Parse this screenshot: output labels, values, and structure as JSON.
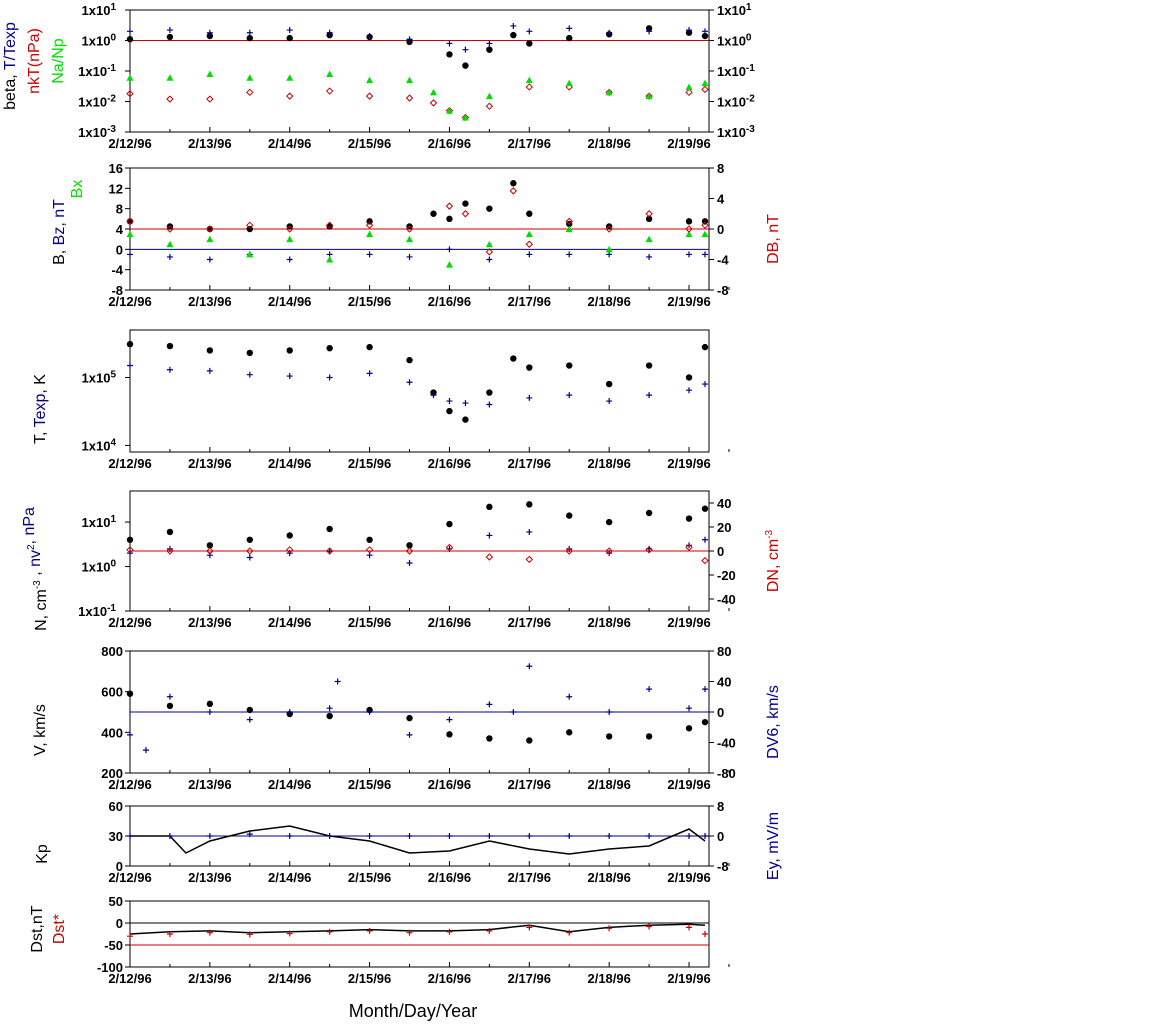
{
  "figure": {
    "xlabel": "Month/Day/Year",
    "date_ticks": [
      "2/12/96",
      "2/13/96",
      "2/14/96",
      "2/15/96",
      "2/16/96",
      "2/17/96",
      "2/18/96",
      "2/19/96"
    ]
  },
  "colors": {
    "black": "#000000",
    "blue": "#00008b",
    "red": "#cc0000",
    "green": "#00dd00"
  },
  "chart_data": [
    {
      "id": "beta",
      "type": "scatter",
      "y_scale": "log",
      "ylim": [
        0.001,
        10
      ],
      "y_ticks": [
        "1x10-3",
        "1x10-2",
        "1x10-1",
        "1x100",
        "1x101"
      ],
      "y2_ticks": [
        "1x10-3",
        "1x10-2",
        "1x10-1",
        "1x100",
        "1x101"
      ],
      "ylabels": [
        {
          "text": "beta, ",
          "color": "black"
        },
        {
          "text": "T/Texp",
          "color": "blue"
        },
        {
          "text": "nkT(nPa)",
          "color": "red"
        },
        {
          "text": "Na/Np",
          "color": "green"
        }
      ],
      "reference_lines": [
        {
          "y": 1,
          "color": "red"
        }
      ],
      "series": [
        {
          "marker": "dot",
          "color": "black",
          "x": [
            0,
            0.5,
            1,
            1.5,
            2,
            2.5,
            3,
            3.5,
            4,
            4.2,
            4.5,
            4.8,
            5,
            5.5,
            6,
            6.5,
            7,
            7.2
          ],
          "y": [
            1.1,
            1.3,
            1.4,
            1.2,
            1.2,
            1.5,
            1.3,
            0.9,
            0.35,
            0.15,
            0.5,
            1.5,
            0.8,
            1.2,
            1.6,
            2.5,
            1.8,
            1.4
          ]
        },
        {
          "marker": "plus",
          "color": "blue",
          "x": [
            0,
            0.5,
            1,
            1.5,
            2,
            2.5,
            3,
            3.5,
            4,
            4.2,
            4.5,
            4.8,
            5,
            5.5,
            6,
            6.5,
            7,
            7.2
          ],
          "y": [
            2,
            2.2,
            1.8,
            1.8,
            2.2,
            1.8,
            1.4,
            1.1,
            0.8,
            0.5,
            0.8,
            3,
            2,
            2.5,
            1.8,
            2,
            2.2,
            2
          ]
        },
        {
          "marker": "diamond",
          "color": "red",
          "x": [
            0,
            0.5,
            1,
            1.5,
            2,
            2.5,
            3,
            3.5,
            3.8,
            4,
            4.2,
            4.5,
            5,
            5.5,
            6,
            6.5,
            7,
            7.2
          ],
          "y": [
            0.018,
            0.012,
            0.012,
            0.02,
            0.015,
            0.022,
            0.015,
            0.013,
            0.009,
            0.005,
            0.003,
            0.007,
            0.03,
            0.03,
            0.02,
            0.015,
            0.02,
            0.025
          ]
        },
        {
          "marker": "triangle",
          "color": "green",
          "x": [
            0,
            0.5,
            1,
            1.5,
            2,
            2.5,
            3,
            3.5,
            3.8,
            4,
            4.2,
            4.5,
            5,
            5.5,
            6,
            6.5,
            7,
            7.2
          ],
          "y": [
            0.06,
            0.06,
            0.08,
            0.06,
            0.06,
            0.08,
            0.05,
            0.05,
            0.02,
            0.005,
            0.003,
            0.015,
            0.05,
            0.04,
            0.02,
            0.015,
            0.03,
            0.04
          ]
        }
      ]
    },
    {
      "id": "b_field",
      "type": "scatter",
      "ylim": [
        -8,
        16
      ],
      "y2lim": [
        -8,
        8
      ],
      "y_ticks": [
        "-8",
        "-4",
        "0",
        "4",
        "8",
        "12",
        "16"
      ],
      "y2_ticks": [
        "-8",
        "-4",
        "0",
        "4",
        "8"
      ],
      "ylabels": [
        {
          "text": "B, ",
          "color": "black"
        },
        {
          "text": "Bz, nT",
          "color": "blue"
        },
        {
          "text": "Bx",
          "color": "green"
        }
      ],
      "y2label": {
        "text": "DB, nT",
        "color": "red"
      },
      "reference_lines": [
        {
          "y": 0,
          "color": "blue"
        },
        {
          "y2": 0,
          "color": "red"
        }
      ],
      "series": [
        {
          "marker": "dot",
          "color": "black",
          "x": [
            0,
            0.5,
            1,
            1.5,
            2,
            2.5,
            3,
            3.5,
            3.8,
            4,
            4.2,
            4.5,
            4.8,
            5,
            5.5,
            6,
            6.5,
            7,
            7.2
          ],
          "y": [
            5.5,
            4.5,
            4,
            4,
            4.5,
            4.5,
            5.5,
            4.5,
            7,
            6,
            9,
            8,
            13,
            7,
            5,
            4.5,
            6,
            5.5,
            5.5
          ]
        },
        {
          "marker": "plus",
          "color": "blue",
          "x": [
            0,
            0.5,
            1,
            1.5,
            2,
            2.5,
            3,
            3.5,
            4,
            4.5,
            5,
            5.5,
            6,
            6.5,
            7,
            7.2
          ],
          "y": [
            -1,
            -1.5,
            -2,
            -1,
            -2,
            -1,
            -1,
            -1.5,
            0,
            -2,
            -1,
            -1,
            -1,
            -1.5,
            -1,
            -1
          ]
        },
        {
          "marker": "triangle",
          "color": "green",
          "x": [
            0,
            0.5,
            1,
            1.5,
            2,
            2.5,
            3,
            3.5,
            4,
            4.5,
            5,
            5.5,
            6,
            6.5,
            7,
            7.2
          ],
          "y": [
            3,
            1,
            2,
            -1,
            2,
            -2,
            3,
            2,
            -3,
            1,
            3,
            4,
            0,
            2,
            3,
            3
          ]
        },
        {
          "marker": "diamond",
          "color": "red",
          "axis": "y2",
          "x": [
            0,
            0.5,
            1,
            1.5,
            2,
            2.5,
            3,
            3.5,
            4,
            4.2,
            4.5,
            4.8,
            5,
            5.5,
            6,
            6.5,
            7,
            7.2
          ],
          "y": [
            1,
            0,
            0,
            0.5,
            0,
            0.5,
            0.5,
            0,
            3,
            2,
            -3,
            5,
            -2,
            1,
            0,
            2,
            0,
            0.5
          ]
        }
      ]
    },
    {
      "id": "temperature",
      "type": "scatter",
      "y_scale": "log",
      "ylim": [
        8000,
        500000
      ],
      "y_ticks": [
        "1x104",
        "1x105"
      ],
      "ylabels": [
        {
          "text": "T, ",
          "color": "black"
        },
        {
          "text": "Texp",
          "color": "blue"
        },
        {
          "text": ", K",
          "color": "black"
        }
      ],
      "series": [
        {
          "marker": "dot",
          "color": "black",
          "x": [
            0,
            0.5,
            1,
            1.5,
            2,
            2.5,
            3,
            3.5,
            3.8,
            4,
            4.2,
            4.5,
            4.8,
            5,
            5.5,
            6,
            6.5,
            7,
            7.2
          ],
          "y": [
            310000,
            290000,
            250000,
            230000,
            250000,
            270000,
            280000,
            180000,
            60000,
            32000,
            24000,
            60000,
            190000,
            140000,
            150000,
            80000,
            150000,
            100000,
            280000
          ]
        },
        {
          "marker": "plus",
          "color": "blue",
          "x": [
            0,
            0.5,
            1,
            1.5,
            2,
            2.5,
            3,
            3.5,
            3.8,
            4,
            4.2,
            4.5,
            5,
            5.5,
            6,
            6.5,
            7,
            7.2
          ],
          "y": [
            150000,
            130000,
            125000,
            110000,
            105000,
            100000,
            115000,
            85000,
            55000,
            45000,
            42000,
            40000,
            50000,
            55000,
            45000,
            55000,
            65000,
            80000
          ]
        }
      ]
    },
    {
      "id": "density",
      "type": "scatter",
      "y_scale": "log",
      "ylim": [
        0.1,
        50
      ],
      "y2lim": [
        -50,
        50
      ],
      "y_ticks": [
        "1x10-1",
        "1x100",
        "1x101"
      ],
      "y2_ticks": [
        "-40",
        "-20",
        "0",
        "20",
        "40"
      ],
      "ylabels": [
        {
          "text": "N, cm-3 , ",
          "color": "black"
        },
        {
          "text": "nv2, nPa",
          "color": "blue"
        }
      ],
      "y2label": {
        "text": "DN, cm-3",
        "color": "red"
      },
      "reference_lines": [
        {
          "y2": 0,
          "color": "red"
        }
      ],
      "series": [
        {
          "marker": "dot",
          "color": "black",
          "x": [
            0,
            0.5,
            1,
            1.5,
            2,
            2.5,
            3,
            3.5,
            4,
            4.5,
            5,
            5.5,
            6,
            6.5,
            7,
            7.2
          ],
          "y": [
            4,
            6,
            3,
            4,
            5,
            7,
            4,
            3,
            9,
            22,
            25,
            14,
            10,
            16,
            12,
            20
          ]
        },
        {
          "marker": "plus",
          "color": "blue",
          "x": [
            0,
            0.5,
            1,
            1.5,
            2,
            2.5,
            3,
            3.5,
            4,
            4.5,
            5,
            5.5,
            6,
            6.5,
            7,
            7.2
          ],
          "y": [
            2,
            2.5,
            1.8,
            1.6,
            2,
            2.2,
            1.8,
            1.2,
            2.5,
            5,
            6,
            2.5,
            2,
            2.5,
            3,
            4
          ]
        },
        {
          "marker": "diamond",
          "color": "red",
          "axis": "y2",
          "x": [
            0,
            0.5,
            1,
            1.5,
            2,
            2.5,
            3,
            3.5,
            4,
            4.5,
            5,
            5.5,
            6,
            6.5,
            7,
            7.2
          ],
          "y": [
            1,
            0,
            0,
            0,
            1,
            0,
            1,
            0,
            3,
            -5,
            -7,
            0,
            0,
            1,
            3,
            -8
          ]
        }
      ]
    },
    {
      "id": "velocity",
      "type": "scatter",
      "ylim": [
        200,
        800
      ],
      "y2lim": [
        -80,
        80
      ],
      "y_ticks": [
        "200",
        "400",
        "600",
        "800"
      ],
      "y2_ticks": [
        "-80",
        "-40",
        "0",
        "40",
        "80"
      ],
      "ylabels": [
        {
          "text": "V, km/s",
          "color": "black"
        }
      ],
      "y2label": {
        "text": "DV6, km/s",
        "color": "blue"
      },
      "reference_lines": [
        {
          "y2": 0,
          "color": "blue"
        }
      ],
      "series": [
        {
          "marker": "dot",
          "color": "black",
          "x": [
            0,
            0.5,
            1,
            1.5,
            2,
            2.5,
            3,
            3.5,
            4,
            4.5,
            5,
            5.5,
            6,
            6.5,
            7,
            7.2
          ],
          "y": [
            590,
            530,
            540,
            510,
            490,
            480,
            510,
            470,
            390,
            370,
            360,
            400,
            380,
            380,
            420,
            450
          ]
        },
        {
          "marker": "plus",
          "color": "blue",
          "axis": "y2",
          "x": [
            0,
            0.2,
            0.5,
            1,
            1.5,
            2,
            2.5,
            2.6,
            3,
            3.5,
            4,
            4.5,
            4.8,
            5,
            5.5,
            6,
            6.5,
            7,
            7.2
          ],
          "y": [
            -30,
            -50,
            20,
            0,
            -10,
            0,
            5,
            40,
            0,
            -30,
            -10,
            10,
            0,
            60,
            20,
            0,
            30,
            5,
            30
          ]
        }
      ]
    },
    {
      "id": "kp",
      "type": "line",
      "ylim": [
        0,
        60
      ],
      "y2lim": [
        -8,
        8
      ],
      "y_ticks": [
        "0",
        "30",
        "60"
      ],
      "y2_ticks": [
        "-8",
        "0",
        "8"
      ],
      "ylabels": [
        {
          "text": "Kp",
          "color": "black"
        }
      ],
      "y2label": {
        "text": "Ey,  mV/m",
        "color": "blue"
      },
      "reference_lines": [
        {
          "y2": 0,
          "color": "blue"
        }
      ],
      "series": [
        {
          "marker": "line",
          "color": "black",
          "x": [
            0,
            0.5,
            0.7,
            1,
            1.5,
            2,
            2.5,
            3,
            3.5,
            4,
            4.5,
            5,
            5.5,
            6,
            6.5,
            7,
            7.2
          ],
          "y": [
            30,
            30,
            13,
            25,
            35,
            40,
            30,
            25,
            13,
            15,
            25,
            17,
            12,
            17,
            20,
            37,
            25
          ]
        },
        {
          "marker": "plus",
          "color": "blue",
          "axis": "y2",
          "x": [
            0,
            0.5,
            1,
            1.5,
            2,
            2.5,
            3,
            3.5,
            4,
            4.5,
            5,
            5.5,
            6,
            6.5,
            7,
            7.2
          ],
          "y": [
            0,
            0,
            0,
            0.5,
            0,
            0,
            0,
            0,
            0,
            0,
            0,
            0,
            0,
            0,
            0,
            0
          ]
        }
      ]
    },
    {
      "id": "dst",
      "type": "line",
      "ylim": [
        -100,
        50
      ],
      "y_ticks": [
        "-100",
        "-50",
        "0",
        "50"
      ],
      "ylabels": [
        {
          "text": "Dst,nT",
          "color": "black"
        },
        {
          "text": "Dst*",
          "color": "red"
        }
      ],
      "reference_lines": [
        {
          "y": 0,
          "color": "black"
        },
        {
          "y": -50,
          "color": "red"
        }
      ],
      "series": [
        {
          "marker": "line",
          "color": "black",
          "x": [
            0,
            0.5,
            1,
            1.5,
            2,
            2.5,
            3,
            3.5,
            4,
            4.5,
            5,
            5.5,
            6,
            6.5,
            7,
            7.2
          ],
          "y": [
            -25,
            -20,
            -18,
            -22,
            -20,
            -18,
            -15,
            -18,
            -18,
            -15,
            -5,
            -20,
            -10,
            -5,
            -3,
            -5
          ]
        },
        {
          "marker": "plus",
          "color": "red",
          "x": [
            0,
            0.5,
            1,
            1.5,
            2,
            2.5,
            3,
            3.5,
            4,
            4.5,
            5,
            5.5,
            6,
            6.5,
            7,
            7.2
          ],
          "y": [
            -30,
            -25,
            -22,
            -26,
            -24,
            -20,
            -18,
            -22,
            -20,
            -18,
            -10,
            -22,
            -12,
            -8,
            -10,
            -25
          ]
        }
      ]
    }
  ]
}
